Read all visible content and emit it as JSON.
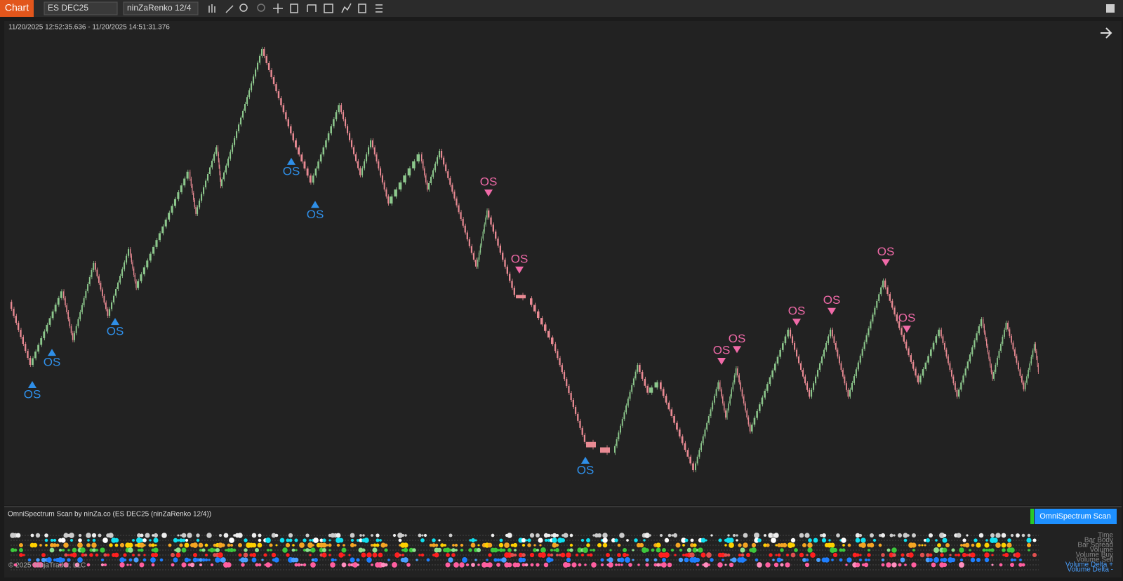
{
  "toolbar": {
    "app": "Chart",
    "instrument": "ES DEC25",
    "bar_type": "ninZaRenko 12/4"
  },
  "chart_data": {
    "type": "renko",
    "subtitle": "11/20/2025 12:52:35.636 - 11/20/2025 14:51:31.376",
    "x": [
      0,
      30,
      75,
      90,
      120,
      140,
      170,
      180,
      255,
      265,
      295,
      300,
      360,
      405,
      430,
      470,
      500,
      515,
      540,
      585,
      595,
      613,
      665,
      680,
      720,
      740,
      775,
      820,
      860,
      895,
      910,
      925,
      975,
      1010,
      1020,
      1035,
      1055,
      1110,
      1140,
      1170,
      1195,
      1245,
      1295,
      1325,
      1350,
      1385,
      1400,
      1420,
      1445,
      1460,
      1465
    ],
    "values": [
      40.3,
      25.8,
      42.7,
      31.5,
      49.2,
      37.1,
      52.4,
      43.5,
      70.2,
      60.5,
      75.8,
      66.9,
      98.4,
      77.4,
      67.7,
      85.5,
      69.4,
      77.4,
      62.9,
      74.2,
      66.1,
      75,
      48.4,
      61.3,
      41.9,
      41.1,
      30.6,
      8.1,
      5.6,
      25.8,
      19.4,
      21.8,
      1.6,
      21.8,
      13.7,
      25,
      10.5,
      33.9,
      18.5,
      33.9,
      18.5,
      45.2,
      21.8,
      33.9,
      18.5,
      36.3,
      22.6,
      35.5,
      20.2,
      30.6,
      24.2
    ],
    "xlim": [
      0,
      1465
    ],
    "ylim": [
      0,
      100
    ],
    "colors": {
      "up": "#8cc78c",
      "down": "#e98a93"
    },
    "markers": [
      {
        "label": "OS",
        "x": 31,
        "value": 22.1,
        "direction": "up",
        "color": "#2f8fe8"
      },
      {
        "label": "OS",
        "x": 59,
        "value": 29.5,
        "direction": "up",
        "color": "#2f8fe8"
      },
      {
        "label": "OS",
        "x": 149,
        "value": 36.6,
        "direction": "up",
        "color": "#2f8fe8"
      },
      {
        "label": "OS",
        "x": 400,
        "value": 73.4,
        "direction": "up",
        "color": "#2f8fe8"
      },
      {
        "label": "OS",
        "x": 434,
        "value": 63.5,
        "direction": "up",
        "color": "#2f8fe8"
      },
      {
        "label": "OS",
        "x": 819,
        "value": 4.7,
        "direction": "up",
        "color": "#2f8fe8"
      },
      {
        "label": "OS",
        "x": 681,
        "value": 64.5,
        "direction": "down",
        "color": "#f06aa8"
      },
      {
        "label": "OS",
        "x": 725,
        "value": 46.8,
        "direction": "down",
        "color": "#f06aa8"
      },
      {
        "label": "OS",
        "x": 1013,
        "value": 25.8,
        "direction": "down",
        "color": "#f06aa8"
      },
      {
        "label": "OS",
        "x": 1035,
        "value": 28.5,
        "direction": "down",
        "color": "#f06aa8"
      },
      {
        "label": "OS",
        "x": 1120,
        "value": 34.8,
        "direction": "down",
        "color": "#f06aa8"
      },
      {
        "label": "OS",
        "x": 1170,
        "value": 37.3,
        "direction": "down",
        "color": "#f06aa8"
      },
      {
        "label": "OS",
        "x": 1247,
        "value": 48.5,
        "direction": "down",
        "color": "#f06aa8"
      },
      {
        "label": "OS",
        "x": 1277,
        "value": 33.2,
        "direction": "down",
        "color": "#f06aa8"
      }
    ]
  },
  "scan": {
    "title": "OmniSpectrum Scan by ninZa.co (ES DEC25 (ninZaRenko 12/4))",
    "button": "OmniSpectrum Scan",
    "rows": [
      "Time",
      "Bar Body",
      "Bar Spread",
      "Volume",
      "Volume Buy",
      "Volume Sell",
      "Volume Delta +",
      "Volume Delta -"
    ]
  },
  "footer": "© 2025 NinjaTrader, LLC"
}
